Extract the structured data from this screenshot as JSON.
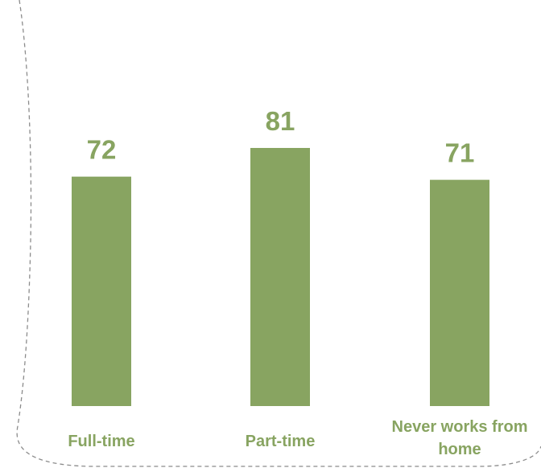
{
  "chart_data": {
    "type": "bar",
    "categories": [
      "Full-time",
      "Part-time",
      "Never works from home"
    ],
    "category_lines": [
      [
        "Full-time"
      ],
      [
        "Part-time"
      ],
      [
        "Never works from",
        "home"
      ]
    ],
    "values": [
      72,
      81,
      71
    ],
    "value_labels": [
      "72",
      "81",
      "71"
    ],
    "title": "",
    "xlabel": "",
    "ylabel": "",
    "ylim": [
      0,
      100
    ],
    "grid": false,
    "legend": "none",
    "bar_color": "#88a461",
    "label_color": "#88a461",
    "frame_color": "#8c8c8c"
  }
}
